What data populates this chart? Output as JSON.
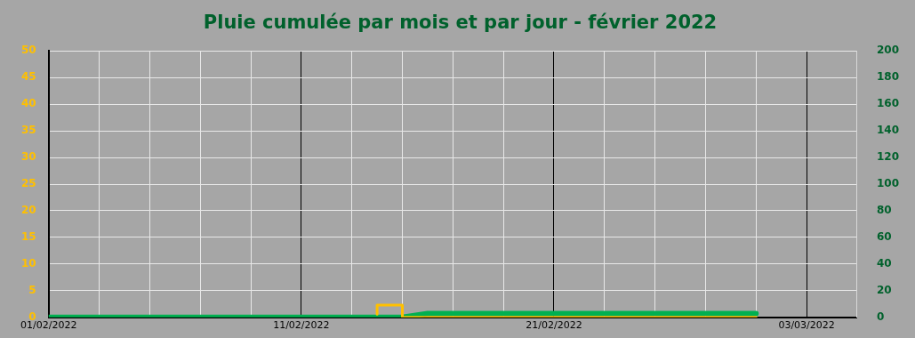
{
  "chart_data": {
    "type": "line",
    "title": "Pluie cumulée par mois et par jour - février 2022",
    "xlim": [
      "2022-02-01",
      "2022-03-05"
    ],
    "xticks": [
      {
        "value": "2022-02-01",
        "label": "01/02/2022"
      },
      {
        "value": "2022-02-03",
        "label": null
      },
      {
        "value": "2022-02-05",
        "label": null
      },
      {
        "value": "2022-02-07",
        "label": null
      },
      {
        "value": "2022-02-09",
        "label": null
      },
      {
        "value": "2022-02-11",
        "label": "11/02/2022"
      },
      {
        "value": "2022-02-13",
        "label": null
      },
      {
        "value": "2022-02-15",
        "label": null
      },
      {
        "value": "2022-02-17",
        "label": null
      },
      {
        "value": "2022-02-19",
        "label": null
      },
      {
        "value": "2022-02-21",
        "label": "21/02/2022"
      },
      {
        "value": "2022-02-23",
        "label": null
      },
      {
        "value": "2022-02-25",
        "label": null
      },
      {
        "value": "2022-02-27",
        "label": null
      },
      {
        "value": "2022-03-01",
        "label": null
      },
      {
        "value": "2022-03-03",
        "label": "03/03/2022"
      },
      {
        "value": "2022-03-05",
        "label": null
      }
    ],
    "ylim": [
      0,
      50
    ],
    "yticks": [
      0,
      5,
      10,
      15,
      20,
      25,
      30,
      35,
      40,
      45,
      50
    ],
    "y2lim": [
      0,
      200
    ],
    "y2ticks": [
      0,
      20,
      40,
      60,
      80,
      100,
      120,
      140,
      160,
      180,
      200
    ],
    "grid": true,
    "series": [
      {
        "type": "step",
        "color": "#ffc000",
        "x": [
          "2022-02-14",
          "2022-02-15",
          "2022-02-16",
          "2022-02-17",
          "2022-02-18",
          "2022-02-19",
          "2022-02-20",
          "2022-02-21",
          "2022-02-22",
          "2022-02-23",
          "2022-02-24",
          "2022-02-25",
          "2022-02-26",
          "2022-02-27",
          "2022-02-28",
          "2022-03-01"
        ],
        "values": [
          0.6,
          2.3,
          0,
          0,
          0,
          0,
          0,
          0,
          0,
          0,
          0,
          0,
          0,
          0,
          0,
          0
        ]
      },
      {
        "axis": "y2",
        "color": "#00b050",
        "x": [
          "2022-02-01",
          "2022-02-05",
          "2022-02-10",
          "2022-02-15",
          "2022-02-16",
          "2022-02-20",
          "2022-02-25",
          "2022-03-01"
        ],
        "values": [
          0,
          0,
          0,
          0,
          2.9,
          2.9,
          2.9,
          2.9
        ]
      }
    ]
  }
}
